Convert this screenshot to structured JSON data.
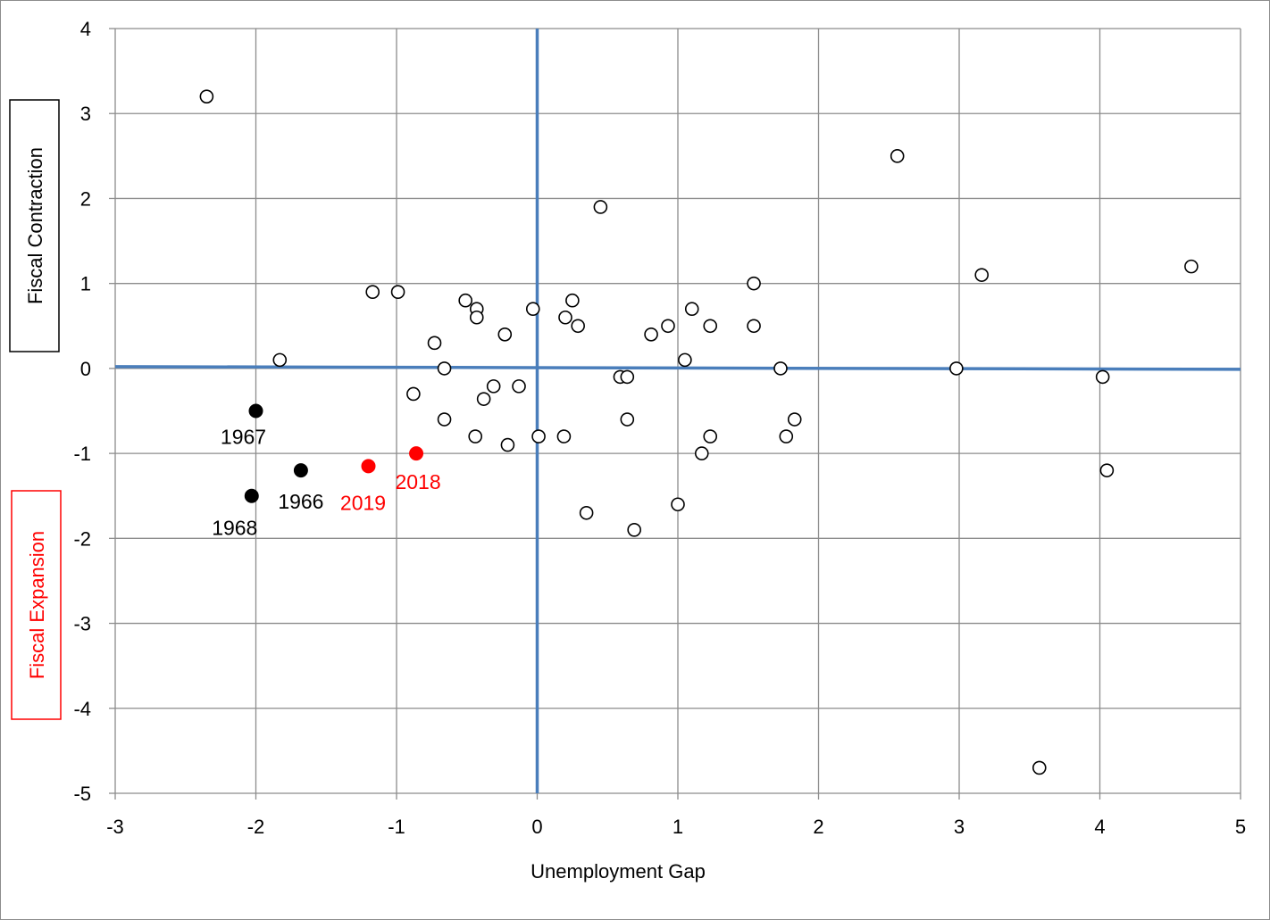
{
  "chart_data": {
    "type": "scatter",
    "title": "",
    "xlabel": "Unemployment Gap",
    "ylabel": "",
    "xlim": [
      -3,
      5
    ],
    "ylim": [
      -5,
      4
    ],
    "xticks": [
      "-3",
      "-2",
      "-1",
      "0",
      "1",
      "2",
      "3",
      "4",
      "5"
    ],
    "yticks": [
      "4",
      "3",
      "2",
      "1",
      "0",
      "-1",
      "-2",
      "-3",
      "-4",
      "-5"
    ],
    "grid": true,
    "upper_box_label": "Fiscal Contraction",
    "lower_box_label": "Fiscal Expansion",
    "colors": {
      "grid": "#8c8c8c",
      "reference_lines": "#4a7ebb",
      "highlight_black": "#000000",
      "highlight_red": "#ff0000"
    },
    "points": [
      {
        "x": -2.35,
        "y": 3.2
      },
      {
        "x": -1.83,
        "y": 0.1
      },
      {
        "x": -1.17,
        "y": 0.9
      },
      {
        "x": -0.99,
        "y": 0.9
      },
      {
        "x": -0.88,
        "y": -0.3
      },
      {
        "x": -0.73,
        "y": 0.3
      },
      {
        "x": -0.66,
        "y": 0.0
      },
      {
        "x": -0.66,
        "y": -0.6
      },
      {
        "x": -0.51,
        "y": 0.8
      },
      {
        "x": -0.43,
        "y": 0.7
      },
      {
        "x": -0.43,
        "y": 0.6
      },
      {
        "x": -0.44,
        "y": -0.8
      },
      {
        "x": -0.38,
        "y": -0.36
      },
      {
        "x": -0.31,
        "y": -0.21
      },
      {
        "x": -0.23,
        "y": 0.4
      },
      {
        "x": -0.21,
        "y": -0.9
      },
      {
        "x": -0.13,
        "y": -0.21
      },
      {
        "x": -0.03,
        "y": 0.7
      },
      {
        "x": 0.01,
        "y": -0.8
      },
      {
        "x": 0.19,
        "y": -0.8
      },
      {
        "x": 0.2,
        "y": 0.6
      },
      {
        "x": 0.25,
        "y": 0.8
      },
      {
        "x": 0.29,
        "y": 0.5
      },
      {
        "x": 0.35,
        "y": -1.7
      },
      {
        "x": 0.45,
        "y": 1.9
      },
      {
        "x": 0.59,
        "y": -0.1
      },
      {
        "x": 0.64,
        "y": -0.1
      },
      {
        "x": 0.64,
        "y": -0.6
      },
      {
        "x": 0.69,
        "y": -1.9
      },
      {
        "x": 0.81,
        "y": 0.4
      },
      {
        "x": 0.93,
        "y": 0.5
      },
      {
        "x": 1.0,
        "y": -1.6
      },
      {
        "x": 1.05,
        "y": 0.1
      },
      {
        "x": 1.1,
        "y": 0.7
      },
      {
        "x": 1.17,
        "y": -1.0
      },
      {
        "x": 1.23,
        "y": 0.5
      },
      {
        "x": 1.23,
        "y": -0.8
      },
      {
        "x": 1.54,
        "y": 1.0
      },
      {
        "x": 1.54,
        "y": 0.5
      },
      {
        "x": 1.73,
        "y": 0.0
      },
      {
        "x": 1.77,
        "y": -0.8
      },
      {
        "x": 1.83,
        "y": -0.6
      },
      {
        "x": 2.56,
        "y": 2.5
      },
      {
        "x": 2.98,
        "y": 0.0
      },
      {
        "x": 3.16,
        "y": 1.1
      },
      {
        "x": 3.57,
        "y": -4.7
      },
      {
        "x": 4.02,
        "y": -0.1
      },
      {
        "x": 4.05,
        "y": -1.2
      },
      {
        "x": 4.65,
        "y": 1.2
      }
    ],
    "labeled_points": [
      {
        "x": -2.0,
        "y": -0.5,
        "label": "1967",
        "color": "#000000"
      },
      {
        "x": -1.68,
        "y": -1.2,
        "label": "1966",
        "color": "#000000"
      },
      {
        "x": -2.03,
        "y": -1.5,
        "label": "1968",
        "color": "#000000"
      },
      {
        "x": -1.2,
        "y": -1.15,
        "label": "2019",
        "color": "#ff0000"
      },
      {
        "x": -0.86,
        "y": -1.0,
        "label": "2018",
        "color": "#ff0000"
      }
    ]
  }
}
